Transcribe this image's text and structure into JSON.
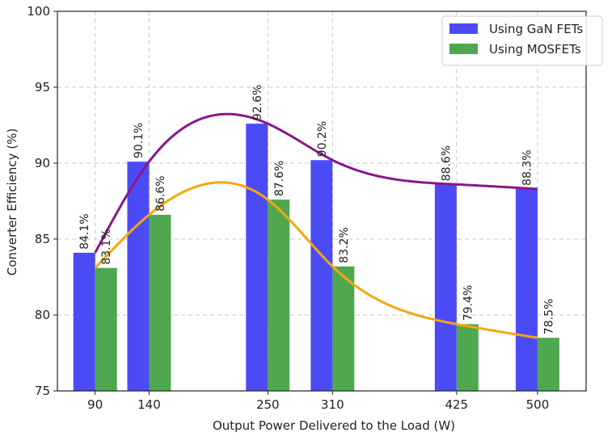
{
  "chart_data": {
    "type": "bar",
    "title": "",
    "xlabel": "Output Power Delivered to the Load (W)",
    "ylabel": "Converter Efficiency (%)",
    "ylim": [
      75,
      100
    ],
    "yticks": [
      75,
      80,
      85,
      90,
      95,
      100
    ],
    "x": [
      90,
      140,
      250,
      310,
      425,
      500
    ],
    "xlim": [
      55,
      545
    ],
    "grid": true,
    "legend_position": "top-right",
    "series": [
      {
        "name": "Using GaN FETs",
        "color": "#4b4bf5",
        "curve_color": "#8a168a",
        "values": [
          84.1,
          90.1,
          92.6,
          90.2,
          88.6,
          88.3
        ],
        "labels": [
          "84.1%",
          "90.1%",
          "92.6%",
          "90.2%",
          "88.6%",
          "88.3%"
        ]
      },
      {
        "name": "Using MOSFETs",
        "color": "#4fa84f",
        "curve_color": "#f5a70f",
        "values": [
          83.1,
          86.6,
          87.6,
          83.2,
          79.4,
          78.5
        ],
        "labels": [
          "83.1%",
          "86.6%",
          "87.6%",
          "83.2%",
          "79.4%",
          "78.5%"
        ]
      }
    ]
  }
}
